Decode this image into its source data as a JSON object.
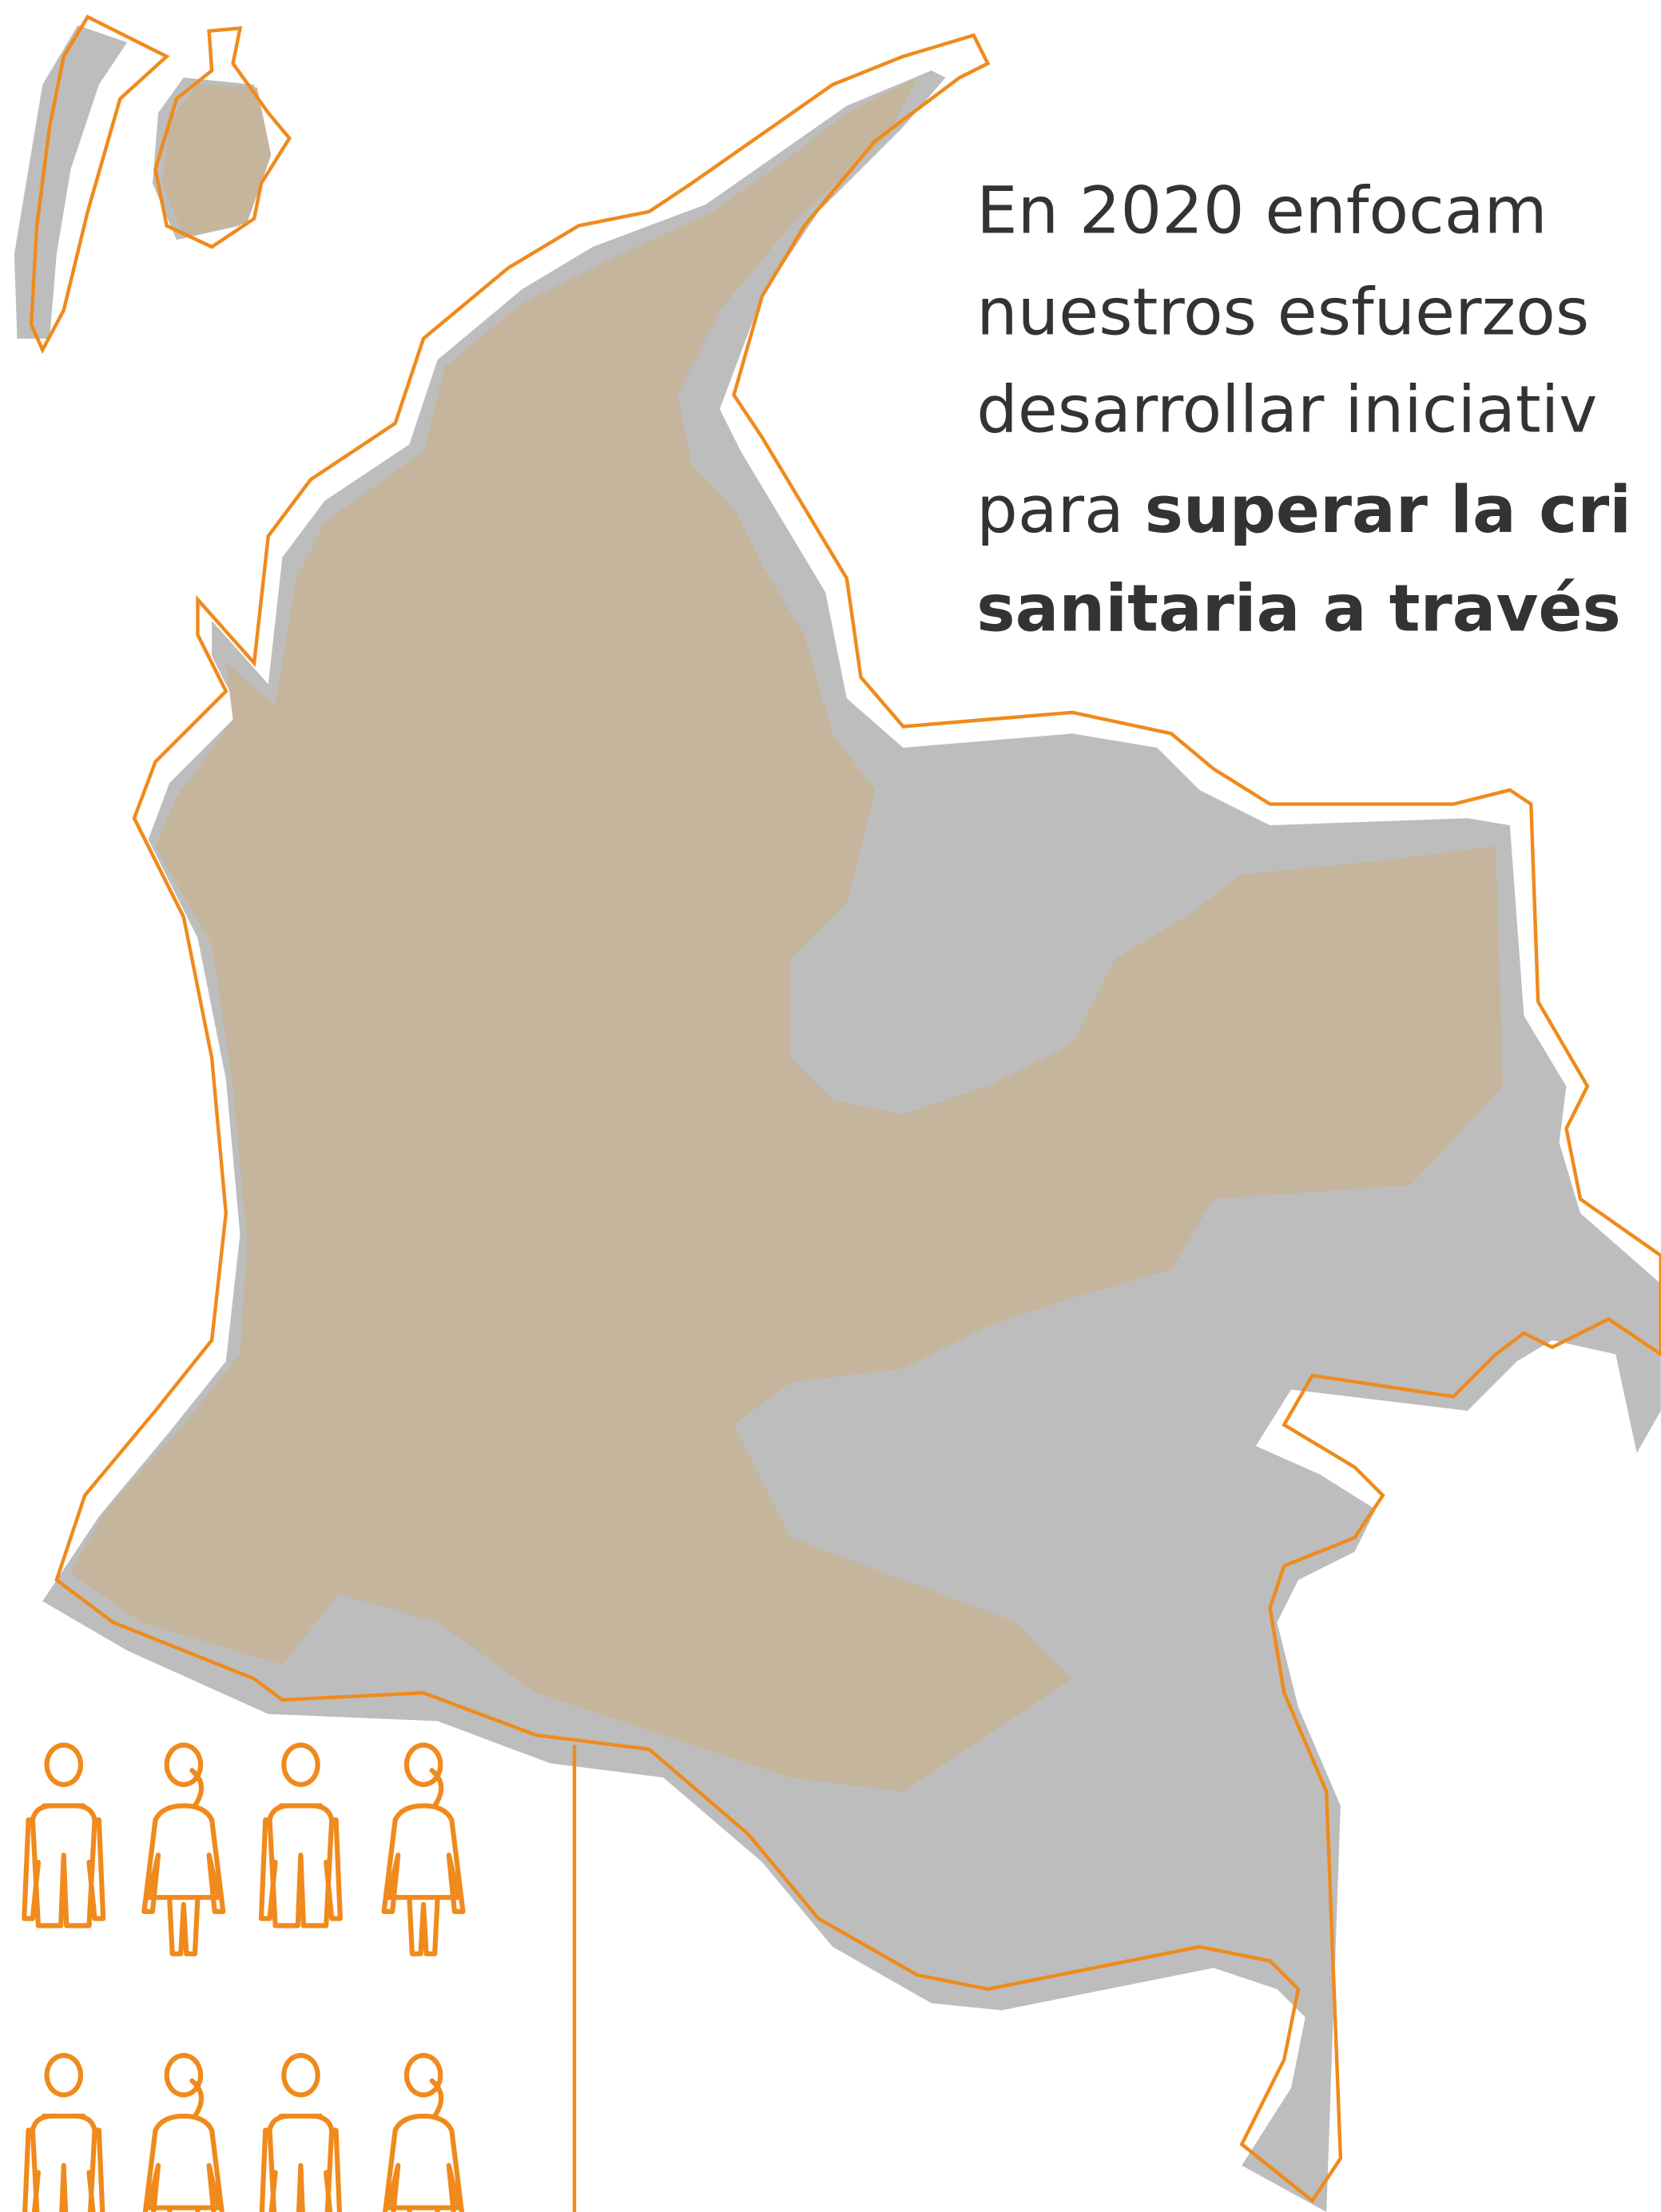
{
  "text": {
    "lines": [
      "En 2020 enfocam",
      "nuestros esfuerzos",
      "desarrollar iniciativ",
      {
        "regular": "para ",
        "bold": "superar la cri"
      },
      "sanitaria a través"
    ]
  }
}
